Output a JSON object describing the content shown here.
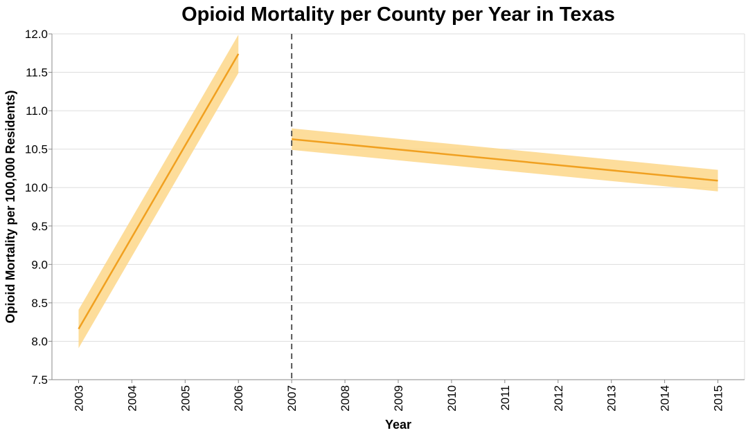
{
  "chart_data": {
    "type": "line",
    "title": "Opioid Mortality per County per Year in Texas",
    "xlabel": "Year",
    "ylabel": "Opioid Mortality per 100,000 Residents)",
    "xlim": [
      2002.5,
      2015.5
    ],
    "ylim": [
      7.5,
      12.0
    ],
    "x_ticks": [
      2003,
      2004,
      2005,
      2006,
      2007,
      2008,
      2009,
      2010,
      2011,
      2012,
      2013,
      2014,
      2015
    ],
    "y_ticks": [
      7.5,
      8.0,
      8.5,
      9.0,
      9.5,
      10.0,
      10.5,
      11.0,
      11.5,
      12.0
    ],
    "grid": true,
    "reference_line": {
      "x": 2007,
      "style": "dashed",
      "color": "#555555"
    },
    "series": [
      {
        "segment": "before",
        "x": [
          2003,
          2006
        ],
        "y": [
          8.16,
          11.74
        ],
        "band_lower": [
          7.91,
          11.49
        ],
        "band_upper": [
          8.41,
          11.99
        ]
      },
      {
        "segment": "after",
        "x": [
          2007,
          2015
        ],
        "y": [
          10.63,
          10.09
        ],
        "band_lower": [
          10.49,
          9.95
        ],
        "band_upper": [
          10.77,
          10.23
        ]
      }
    ],
    "line_color": "#f0a020",
    "band_color": "#fdd78a"
  }
}
